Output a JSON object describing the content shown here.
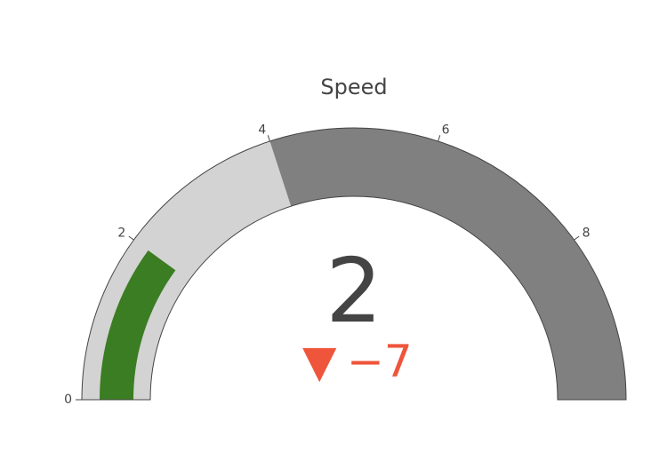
{
  "chart_data": {
    "type": "gauge",
    "title": "Speed",
    "value": 2,
    "delta": {
      "value": -7,
      "symbol": "▼",
      "display": "−7",
      "color": "#EF553B"
    },
    "range": [
      0,
      10
    ],
    "ticks": [
      {
        "value": 0,
        "label": "0"
      },
      {
        "value": 2,
        "label": "2"
      },
      {
        "value": 4,
        "label": "4"
      },
      {
        "value": 6,
        "label": "6"
      },
      {
        "value": 8,
        "label": "8"
      }
    ],
    "steps": [
      {
        "range": [
          0,
          4
        ],
        "color": "#d3d3d3"
      },
      {
        "range": [
          4,
          10
        ],
        "color": "#808080"
      }
    ],
    "bar": {
      "color": "#3a7d22"
    },
    "border_color": "#444444",
    "text_color": "#444444"
  }
}
